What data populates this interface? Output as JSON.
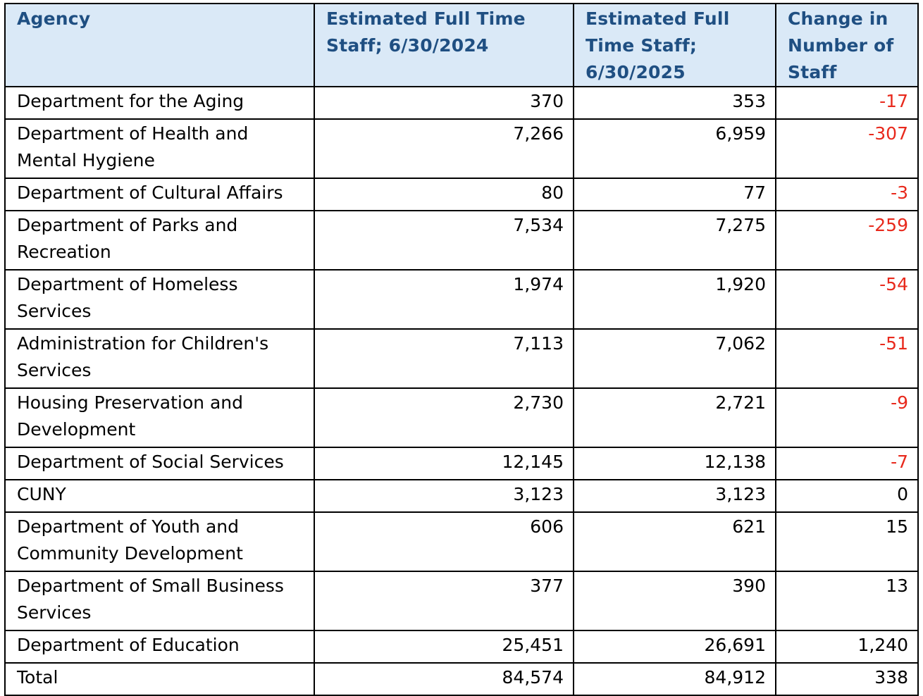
{
  "table": {
    "headers": [
      "Agency",
      "Estimated Full Time Staff; 6/30/2024",
      "Estimated Full Time Staff; 6/30/2025",
      "Change in Number of Staff"
    ],
    "rows": [
      {
        "agency": "Department for the Aging",
        "fy2024": "370",
        "fy2025": "353",
        "change": "-17"
      },
      {
        "agency": "Department of Health and Mental Hygiene",
        "fy2024": "7,266",
        "fy2025": "6,959",
        "change": "-307"
      },
      {
        "agency": "Department of Cultural Affairs",
        "fy2024": "80",
        "fy2025": "77",
        "change": "-3"
      },
      {
        "agency": "Department of Parks and Recreation",
        "fy2024": "7,534",
        "fy2025": "7,275",
        "change": "-259"
      },
      {
        "agency": "Department of Homeless Services",
        "fy2024": "1,974",
        "fy2025": "1,920",
        "change": "-54"
      },
      {
        "agency": "Administration for Children's Services",
        "fy2024": "7,113",
        "fy2025": "7,062",
        "change": "-51"
      },
      {
        "agency": "Housing Preservation and Development",
        "fy2024": "2,730",
        "fy2025": "2,721",
        "change": "-9"
      },
      {
        "agency": "Department of Social Services",
        "fy2024": "12,145",
        "fy2025": "12,138",
        "change": "-7"
      },
      {
        "agency": "CUNY",
        "fy2024": "3,123",
        "fy2025": "3,123",
        "change": "0"
      },
      {
        "agency": "Department of Youth and Community Development",
        "fy2024": "606",
        "fy2025": "621",
        "change": "15"
      },
      {
        "agency": "Department of Small Business Services",
        "fy2024": "377",
        "fy2025": "390",
        "change": "13"
      },
      {
        "agency": "Department of Education",
        "fy2024": "25,451",
        "fy2025": "26,691",
        "change": "1,240"
      },
      {
        "agency": "Total",
        "fy2024": "84,574",
        "fy2025": "84,912",
        "change": "338"
      }
    ]
  },
  "colors": {
    "header_background": "#dae9f7",
    "header_text": "#1f4f82",
    "negative_value": "#e8291c",
    "border": "#000000"
  }
}
